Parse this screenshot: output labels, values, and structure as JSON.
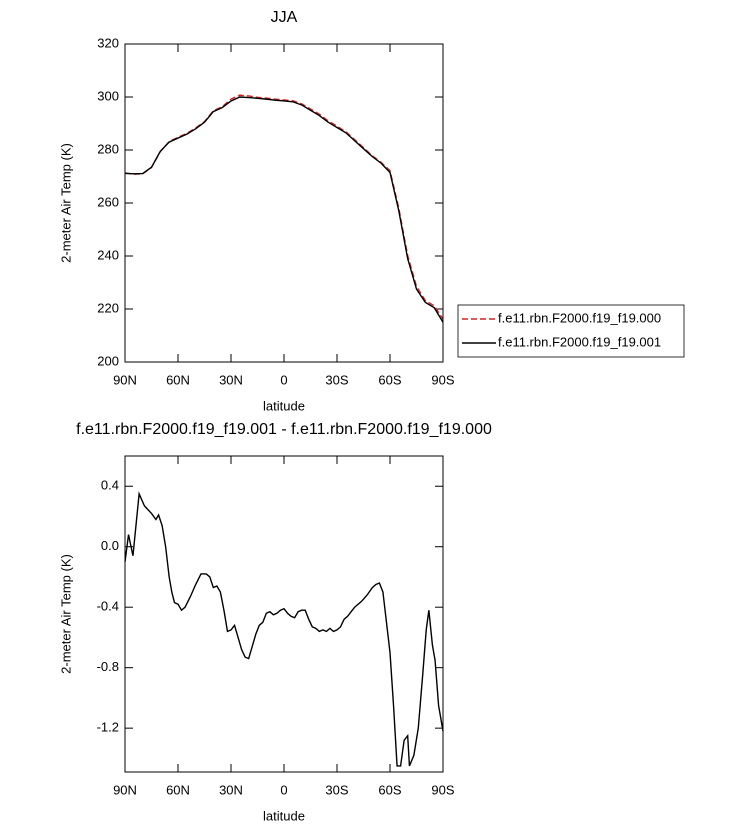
{
  "chart_data": [
    {
      "type": "line",
      "title": "JJA",
      "xlabel": "latitude",
      "ylabel": "2-meter Air Temp (K)",
      "x": [
        90,
        85,
        80,
        75,
        70,
        65,
        60,
        55,
        50,
        45,
        40,
        35,
        30,
        25,
        20,
        15,
        10,
        5,
        0,
        -5,
        -10,
        -15,
        -20,
        -25,
        -30,
        -35,
        -40,
        -45,
        -50,
        -55,
        -60,
        -65,
        -70,
        -75,
        -80,
        -85,
        -90
      ],
      "series": [
        {
          "name": "f.e11.rbn.F2000.f19_f19.000",
          "color": "#d62020",
          "line_style": "dashed",
          "values": [
            271.3,
            270.9,
            271.0,
            273.4,
            279.4,
            283.2,
            284.8,
            286.3,
            288.3,
            290.7,
            294.8,
            296.3,
            299.2,
            300.7,
            300.4,
            299.9,
            299.6,
            299.2,
            298.9,
            298.6,
            297.4,
            295.5,
            293.5,
            291.0,
            289.0,
            286.9,
            283.9,
            280.9,
            277.8,
            275.3,
            272.2,
            258.0,
            240.2,
            228.5,
            223.2,
            221.2,
            216.2
          ]
        },
        {
          "name": "f.e11.rbn.F2000.f19_f19.001",
          "color": "#000000",
          "line_style": "solid",
          "values": [
            271.2,
            271.0,
            271.1,
            273.5,
            279.5,
            283.0,
            284.5,
            286.0,
            288.0,
            290.5,
            294.5,
            296.0,
            298.5,
            300.0,
            299.8,
            299.5,
            299.2,
            298.8,
            298.5,
            298.2,
            297.0,
            295.0,
            293.0,
            290.5,
            288.5,
            286.5,
            283.5,
            280.5,
            277.5,
            275.0,
            271.5,
            257.0,
            239.0,
            227.5,
            222.5,
            220.5,
            215.0
          ]
        }
      ],
      "xlim": [
        90,
        -90
      ],
      "xticks": [
        {
          "value": 90,
          "label": "90N"
        },
        {
          "value": 60,
          "label": "60N"
        },
        {
          "value": 30,
          "label": "30N"
        },
        0,
        {
          "value": -30,
          "label": "30S"
        },
        {
          "value": -60,
          "label": "60S"
        },
        {
          "value": -90,
          "label": "90S"
        }
      ],
      "ylim": [
        200,
        320
      ],
      "yticks": [
        200,
        220,
        240,
        260,
        280,
        300,
        320
      ],
      "legend_position": "outside-right"
    },
    {
      "type": "line",
      "title": "f.e11.rbn.F2000.f19_f19.001 - f.e11.rbn.F2000.f19_f19.000",
      "xlabel": "latitude",
      "ylabel": "2-meter Air Temp (K)",
      "x": [
        90,
        88,
        85.5,
        82,
        79,
        75,
        72.5,
        71,
        69,
        67,
        65,
        63.5,
        62,
        60,
        58,
        56,
        53,
        50,
        47,
        44,
        42,
        40,
        38,
        36,
        34,
        32,
        30,
        28,
        26,
        24,
        22,
        20,
        18,
        16,
        14,
        12,
        10,
        8,
        6,
        4,
        2,
        0,
        -2,
        -4,
        -6,
        -8,
        -10,
        -12,
        -14,
        -16,
        -18,
        -20,
        -22,
        -24,
        -26,
        -28,
        -30,
        -32,
        -34,
        -36,
        -38,
        -40,
        -44,
        -47,
        -50,
        -52,
        -54,
        -56,
        -58,
        -60,
        -62,
        -64,
        -66,
        -68,
        -70,
        -71,
        -73.5,
        -76,
        -78.5,
        -80.5,
        -82,
        -84,
        -85.5,
        -87.5,
        -90
      ],
      "values": [
        -0.1,
        0.08,
        -0.06,
        0.35,
        0.27,
        0.22,
        0.18,
        0.21,
        0.14,
        0.0,
        -0.2,
        -0.3,
        -0.37,
        -0.38,
        -0.42,
        -0.4,
        -0.33,
        -0.25,
        -0.18,
        -0.18,
        -0.2,
        -0.27,
        -0.26,
        -0.3,
        -0.42,
        -0.56,
        -0.55,
        -0.52,
        -0.6,
        -0.68,
        -0.73,
        -0.74,
        -0.66,
        -0.58,
        -0.52,
        -0.5,
        -0.44,
        -0.43,
        -0.45,
        -0.44,
        -0.42,
        -0.41,
        -0.44,
        -0.46,
        -0.47,
        -0.43,
        -0.42,
        -0.42,
        -0.48,
        -0.53,
        -0.54,
        -0.56,
        -0.55,
        -0.56,
        -0.54,
        -0.56,
        -0.55,
        -0.53,
        -0.48,
        -0.46,
        -0.43,
        -0.4,
        -0.36,
        -0.32,
        -0.27,
        -0.25,
        -0.24,
        -0.3,
        -0.5,
        -0.7,
        -1.05,
        -1.45,
        -1.45,
        -1.28,
        -1.25,
        -1.45,
        -1.38,
        -1.2,
        -0.85,
        -0.55,
        -0.42,
        -0.65,
        -0.75,
        -1.05,
        -1.22
      ],
      "color": "#000000",
      "line_style": "solid",
      "xlim": [
        90,
        -90
      ],
      "xticks": [
        {
          "value": 90,
          "label": "90N"
        },
        {
          "value": 60,
          "label": "60N"
        },
        {
          "value": 30,
          "label": "30N"
        },
        0,
        {
          "value": -30,
          "label": "30S"
        },
        {
          "value": -60,
          "label": "60S"
        },
        {
          "value": -90,
          "label": "90S"
        }
      ],
      "ylim": [
        -1.49,
        0.6
      ],
      "yticks": [
        -1.2,
        -0.8,
        -0.4,
        {
          "value": 0,
          "label": "0.0"
        },
        0.4
      ]
    }
  ]
}
